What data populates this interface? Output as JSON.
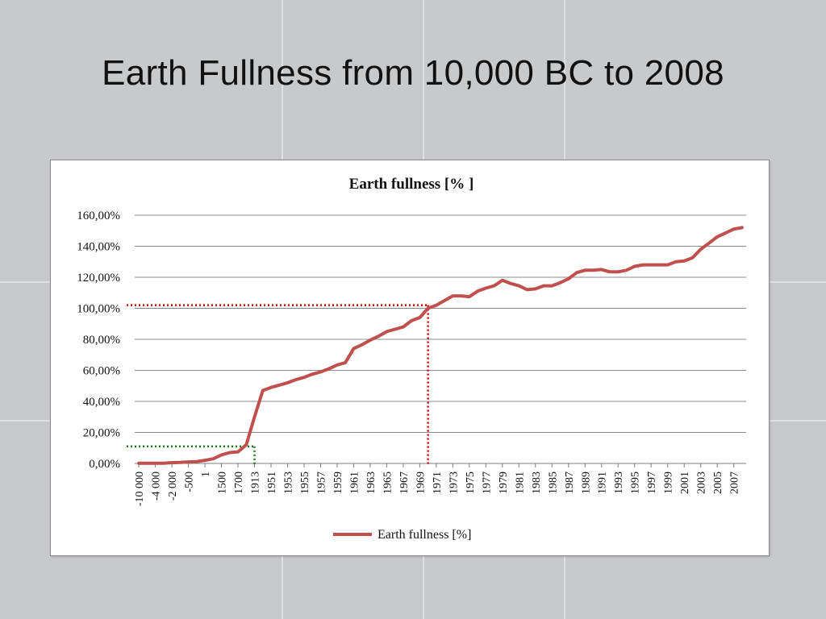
{
  "slide": {
    "title": "Earth Fullness from 10,000 BC to 2008"
  },
  "chart_data": {
    "type": "line",
    "title": "Earth  fullness [% ]",
    "xlabel": "",
    "ylabel": "",
    "ylim": [
      0,
      160
    ],
    "y_ticks": [
      "0,00%",
      "20,00%",
      "40,00%",
      "60,00%",
      "80,00%",
      "100,00%",
      "120,00%",
      "140,00%",
      "160,00%"
    ],
    "x_tick_labels": [
      "-10 000",
      "-4 000",
      "-2 000",
      "-500",
      "1",
      "1500",
      "1700",
      "1913",
      "1951",
      "1953",
      "1955",
      "1957",
      "1959",
      "1961",
      "1963",
      "1965",
      "1967",
      "1969",
      "1971",
      "1973",
      "1975",
      "1977",
      "1979",
      "1981",
      "1983",
      "1985",
      "1987",
      "1989",
      "1991",
      "1993",
      "1995",
      "1997",
      "1999",
      "2001",
      "2003",
      "2005",
      "2007"
    ],
    "grid": true,
    "legend_position": "bottom",
    "series": [
      {
        "name": "Earth fullness [%]",
        "color": "#c0504d",
        "x": [
          "-10 000",
          "-8 000",
          "-4 000",
          "-3 000",
          "-2 000",
          "-1 000",
          "-500",
          "-200",
          "1",
          "1000",
          "1500",
          "1600",
          "1700",
          "1900",
          "1913",
          "1950",
          "1951",
          "1952",
          "1953",
          "1954",
          "1955",
          "1956",
          "1957",
          "1958",
          "1959",
          "1960",
          "1961",
          "1962",
          "1963",
          "1964",
          "1965",
          "1966",
          "1967",
          "1968",
          "1969",
          "1970",
          "1971",
          "1972",
          "1973",
          "1974",
          "1975",
          "1976",
          "1977",
          "1978",
          "1979",
          "1980",
          "1981",
          "1982",
          "1983",
          "1984",
          "1985",
          "1986",
          "1987",
          "1988",
          "1989",
          "1990",
          "1991",
          "1992",
          "1993",
          "1994",
          "1995",
          "1996",
          "1997",
          "1998",
          "1999",
          "2000",
          "2001",
          "2002",
          "2003",
          "2004",
          "2005",
          "2006",
          "2007",
          "2008"
        ],
        "values": [
          0.1,
          0.1,
          0.1,
          0.1,
          0.5,
          0.6,
          1.0,
          1.2,
          2.0,
          3.0,
          5.5,
          7.0,
          7.5,
          12.0,
          30.0,
          47.0,
          49.0,
          50.5,
          52.0,
          54.0,
          55.5,
          57.5,
          59.0,
          61.0,
          63.5,
          65.0,
          74.0,
          76.5,
          79.5,
          82.0,
          85.0,
          86.5,
          88.0,
          92.0,
          94.0,
          100.0,
          102.0,
          105.0,
          108.0,
          108.0,
          107.5,
          111.0,
          113.0,
          114.5,
          118.0,
          116.0,
          114.5,
          112.0,
          112.5,
          114.5,
          114.5,
          116.5,
          119.0,
          123.0,
          124.5,
          124.5,
          125.0,
          123.5,
          123.5,
          124.5,
          127.0,
          128.0,
          128.0,
          128.0,
          128.0,
          130.0,
          130.5,
          132.5,
          138.0,
          142.0,
          146.0,
          148.5,
          151.0,
          152.0
        ]
      }
    ],
    "annotations": [
      {
        "kind": "dotted-guide",
        "color": "#cc0000",
        "x": "1970",
        "y": 102
      },
      {
        "kind": "dotted-guide",
        "color": "#1a7a1a",
        "x": "1913",
        "y": 11
      }
    ]
  }
}
